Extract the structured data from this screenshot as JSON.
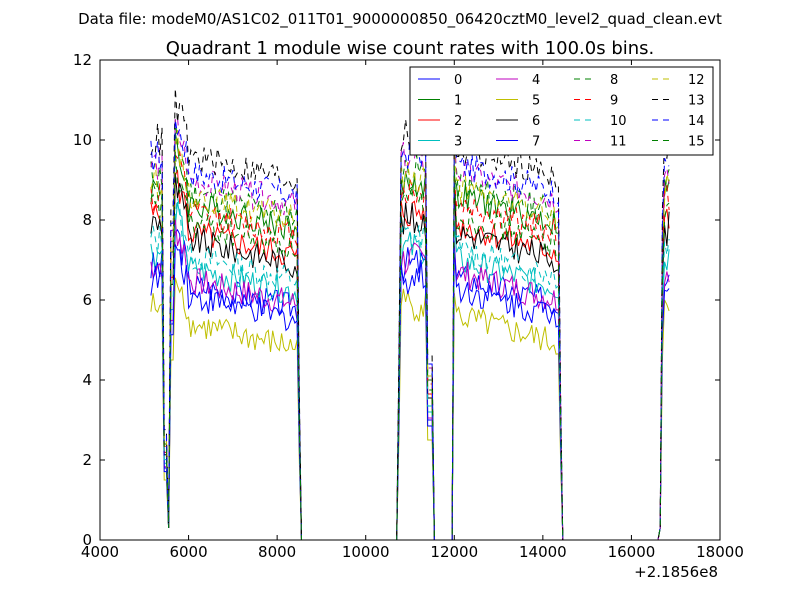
{
  "chart_data": {
    "type": "line",
    "suptitle": "Data file: modeM0/AS1C02_011T01_9000000850_06420cztM0_level2_quad_clean.evt",
    "title": "Quadrant 1 module wise count rates with 100.0s bins.",
    "xlabel": "",
    "ylabel": "",
    "x_offset_label": "+2.1856e8",
    "xlim": [
      4000,
      18000
    ],
    "ylim": [
      0,
      12
    ],
    "x_ticks": [
      4000,
      6000,
      8000,
      10000,
      12000,
      14000,
      16000,
      18000
    ],
    "y_ticks": [
      0,
      2,
      4,
      6,
      8,
      10,
      12
    ],
    "grid": false,
    "legend": {
      "placement": "top-right",
      "columns": 4
    },
    "segments": [
      {
        "start": 5150,
        "end": 8450,
        "ramp_down_to": 8550
      },
      {
        "start": 10750,
        "end": 11450
      },
      {
        "start": 12000,
        "end": 14350,
        "ramp_down_to": 14450
      },
      {
        "start": 16650,
        "end": 16850
      }
    ],
    "series": [
      {
        "name": "0",
        "color": "#0000ff",
        "dash": false,
        "level": 6.0
      },
      {
        "name": "1",
        "color": "#008000",
        "dash": false,
        "level": 8.0
      },
      {
        "name": "2",
        "color": "#ff0000",
        "dash": false,
        "level": 7.3
      },
      {
        "name": "3",
        "color": "#00bfbf",
        "dash": false,
        "level": 6.4
      },
      {
        "name": "4",
        "color": "#bf00bf",
        "dash": false,
        "level": 6.1
      },
      {
        "name": "5",
        "color": "#bfbf00",
        "dash": false,
        "level": 5.0
      },
      {
        "name": "6",
        "color": "#000000",
        "dash": false,
        "level": 7.1
      },
      {
        "name": "7",
        "color": "#0000ff",
        "dash": false,
        "level": 5.7
      },
      {
        "name": "8",
        "color": "#008000",
        "dash": true,
        "level": 8.3
      },
      {
        "name": "9",
        "color": "#ff0000",
        "dash": true,
        "level": 7.8
      },
      {
        "name": "10",
        "color": "#00bfbf",
        "dash": true,
        "level": 6.7
      },
      {
        "name": "11",
        "color": "#bf00bf",
        "dash": true,
        "level": 8.6
      },
      {
        "name": "12",
        "color": "#bfbf00",
        "dash": true,
        "level": 8.2
      },
      {
        "name": "13",
        "color": "#000000",
        "dash": true,
        "level": 9.2
      },
      {
        "name": "14",
        "color": "#0000ff",
        "dash": true,
        "level": 8.8
      },
      {
        "name": "15",
        "color": "#008000",
        "dash": true,
        "level": 7.5
      }
    ]
  }
}
